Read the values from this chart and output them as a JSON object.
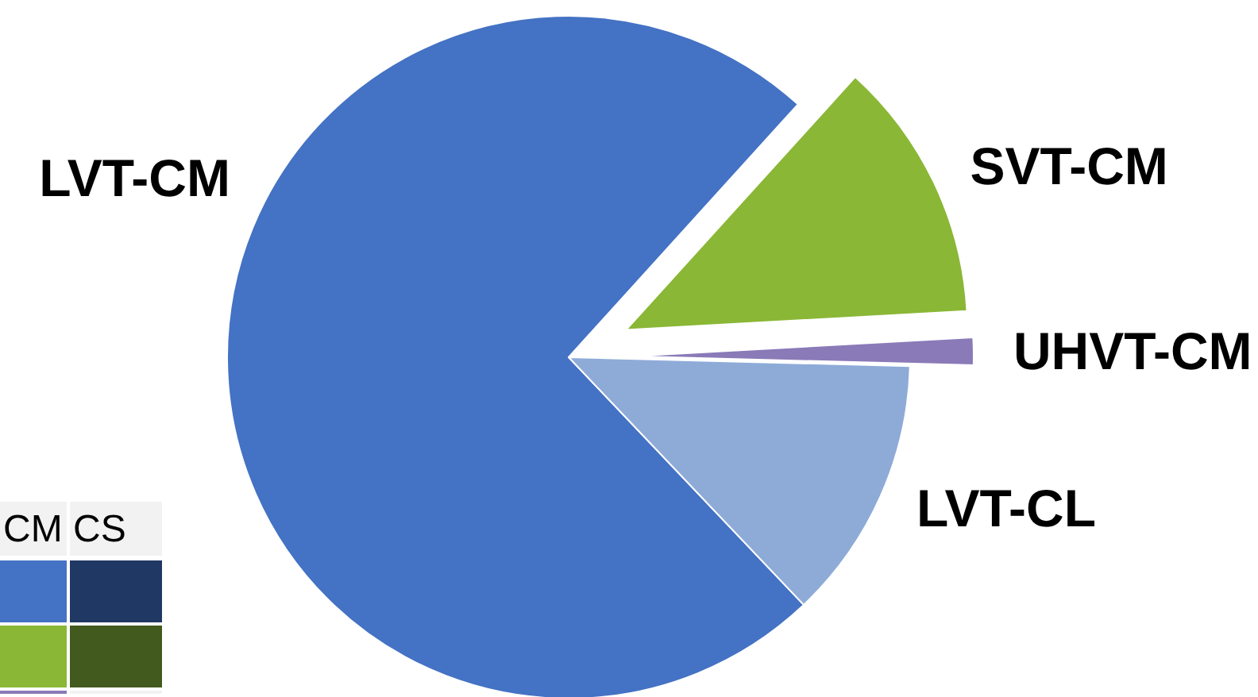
{
  "chart_data": {
    "type": "pie",
    "categories": [
      "LVT-CM",
      "SVT-CM",
      "UHVT-CM",
      "LVT-CL"
    ],
    "values": [
      73.8,
      12.4,
      1.3,
      12.5
    ],
    "colors": [
      "#4472c4",
      "#8ab735",
      "#8a7ab8",
      "#8eabd8"
    ],
    "annotations": [
      "CM",
      "CS"
    ],
    "legend": false
  }
}
